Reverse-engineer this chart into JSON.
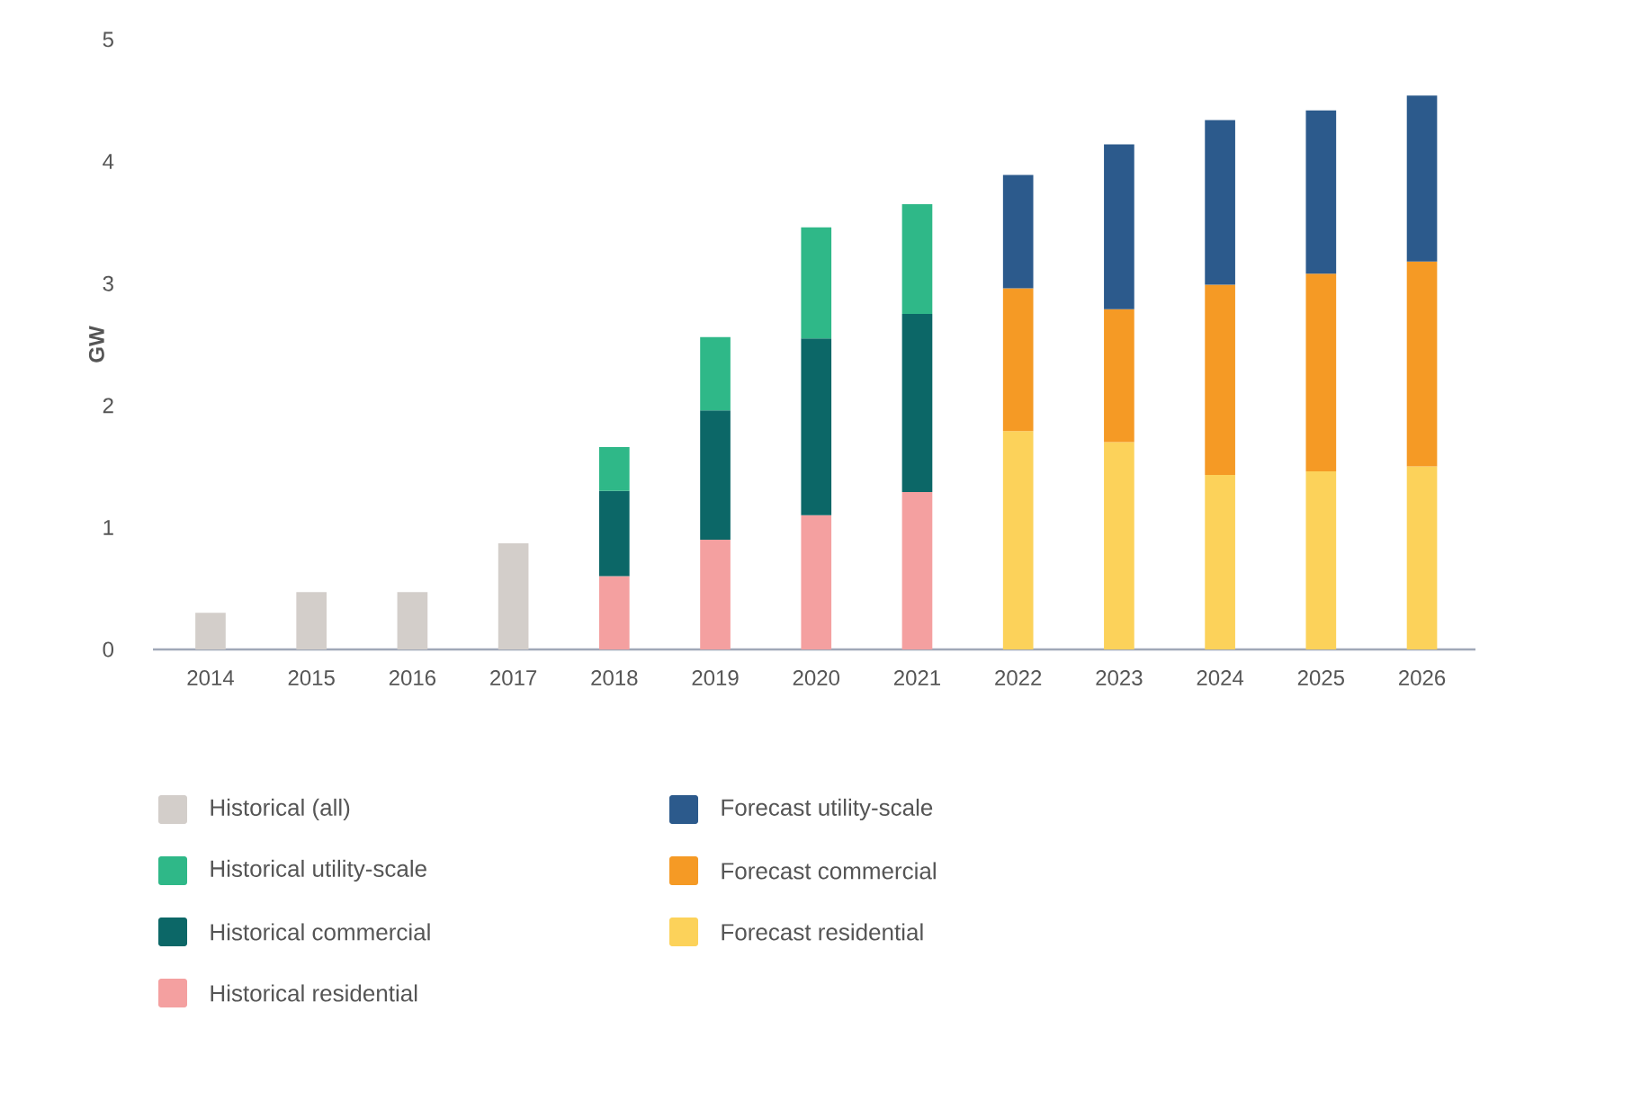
{
  "chart_data": {
    "type": "bar",
    "stacked": true,
    "ylabel": "GW",
    "categories": [
      "2014",
      "2015",
      "2016",
      "2017",
      "2018",
      "2019",
      "2020",
      "2021",
      "2022",
      "2023",
      "2024",
      "2025",
      "2026"
    ],
    "ylim": [
      0,
      5
    ],
    "yticks": [
      0,
      1,
      2,
      3,
      4,
      5
    ],
    "legend": "bottom",
    "series": [
      {
        "name": "Historical (all)",
        "color": "#d3ceca",
        "values": [
          0.3,
          0.47,
          0.47,
          0.87,
          null,
          null,
          null,
          null,
          null,
          null,
          null,
          null,
          null
        ]
      },
      {
        "name": "Historical residential",
        "color": "#f4a0a0",
        "values": [
          null,
          null,
          null,
          null,
          0.6,
          0.9,
          1.1,
          1.29,
          null,
          null,
          null,
          null,
          null
        ]
      },
      {
        "name": "Historical commercial",
        "color": "#0c6767",
        "values": [
          null,
          null,
          null,
          null,
          0.7,
          1.06,
          1.45,
          1.46,
          null,
          null,
          null,
          null,
          null
        ]
      },
      {
        "name": "Historical utility-scale",
        "color": "#2fb888",
        "values": [
          null,
          null,
          null,
          null,
          0.36,
          0.6,
          0.91,
          0.9,
          null,
          null,
          null,
          null,
          null
        ]
      },
      {
        "name": "Forecast residential",
        "color": "#fcd25a",
        "values": [
          null,
          null,
          null,
          null,
          null,
          null,
          null,
          null,
          1.79,
          1.7,
          1.43,
          1.46,
          1.5
        ]
      },
      {
        "name": "Forecast commercial",
        "color": "#f59a25",
        "values": [
          null,
          null,
          null,
          null,
          null,
          null,
          null,
          null,
          1.17,
          1.09,
          1.56,
          1.62,
          1.68
        ]
      },
      {
        "name": "Forecast utility-scale",
        "color": "#2c5a8c",
        "values": [
          null,
          null,
          null,
          null,
          null,
          null,
          null,
          null,
          0.93,
          1.35,
          1.35,
          1.34,
          1.36
        ]
      }
    ]
  }
}
